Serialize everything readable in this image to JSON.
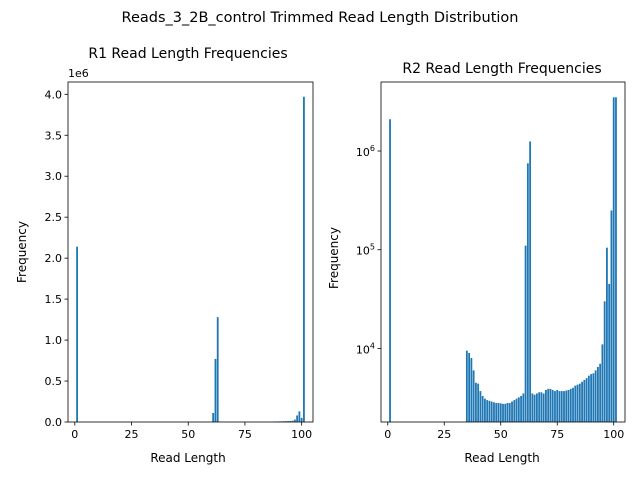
{
  "figure": {
    "suptitle": "Reads_3_2B_control Trimmed Read Length Distribution"
  },
  "chart_data": [
    {
      "type": "bar",
      "title": "R1 Read Length Frequencies",
      "xlabel": "Read Length",
      "ylabel": "Frequency",
      "xlim": [
        -3,
        105
      ],
      "ylim": [
        0,
        4.15
      ],
      "y_scale": "linear",
      "y_offset_label": "1e6",
      "xticks": [
        0,
        25,
        50,
        75,
        100
      ],
      "xtick_labels": [
        "0",
        "25",
        "50",
        "75",
        "100"
      ],
      "yticks": [
        0,
        0.5,
        1.0,
        1.5,
        2.0,
        2.5,
        3.0,
        3.5,
        4.0
      ],
      "ytick_labels": [
        "0.0",
        "0.5",
        "1.0",
        "1.5",
        "2.0",
        "2.5",
        "3.0",
        "3.5",
        "4.0"
      ],
      "color": "#1f77b4",
      "x": [
        1,
        61,
        62,
        63,
        88,
        89,
        90,
        91,
        92,
        93,
        94,
        95,
        96,
        97,
        98,
        99,
        100,
        101
      ],
      "values": [
        2.14,
        0.11,
        0.77,
        1.28,
        0.005,
        0.006,
        0.007,
        0.008,
        0.009,
        0.01,
        0.011,
        0.012,
        0.015,
        0.03,
        0.08,
        0.13,
        0.05,
        3.97
      ]
    },
    {
      "type": "bar",
      "title": "R2 Read Length Frequencies",
      "xlabel": "Read Length",
      "ylabel": "Frequency",
      "xlim": [
        -3,
        105
      ],
      "ylim": [
        1800,
        5000000
      ],
      "y_scale": "log",
      "xticks": [
        0,
        25,
        50,
        75,
        100
      ],
      "xtick_labels": [
        "0",
        "25",
        "50",
        "75",
        "100"
      ],
      "yticks": [
        10000,
        100000,
        1000000
      ],
      "ytick_labels": [
        {
          "base": "10",
          "exp": "4"
        },
        {
          "base": "10",
          "exp": "5"
        },
        {
          "base": "10",
          "exp": "6"
        }
      ],
      "color": "#1f77b4",
      "x": [
        1,
        35,
        36,
        37,
        38,
        39,
        40,
        41,
        42,
        43,
        44,
        45,
        46,
        47,
        48,
        49,
        50,
        51,
        52,
        53,
        54,
        55,
        56,
        57,
        58,
        59,
        60,
        61,
        62,
        63,
        64,
        65,
        66,
        67,
        68,
        69,
        70,
        71,
        72,
        73,
        74,
        75,
        76,
        77,
        78,
        79,
        80,
        81,
        82,
        83,
        84,
        85,
        86,
        87,
        88,
        89,
        90,
        91,
        92,
        93,
        94,
        95,
        96,
        97,
        98,
        99,
        100,
        101
      ],
      "values": [
        2100000,
        9500,
        9000,
        8000,
        6000,
        4500,
        4400,
        3700,
        3300,
        3100,
        3000,
        2950,
        2900,
        2850,
        2800,
        2800,
        2780,
        2750,
        2750,
        2800,
        2800,
        2900,
        3000,
        3100,
        3200,
        3300,
        3500,
        110000,
        750000,
        1250000,
        3500,
        3400,
        3500,
        3600,
        3600,
        3500,
        3800,
        3900,
        3900,
        3800,
        3700,
        3800,
        3700,
        3700,
        3700,
        3750,
        3800,
        3900,
        4000,
        4200,
        4300,
        4400,
        4600,
        4800,
        5000,
        5300,
        5500,
        5600,
        6000,
        6500,
        7000,
        11000,
        30000,
        105000,
        45000,
        250000,
        3500000,
        3500000
      ]
    }
  ],
  "layout_words": {
    "legend": "none",
    "grid": "off"
  }
}
